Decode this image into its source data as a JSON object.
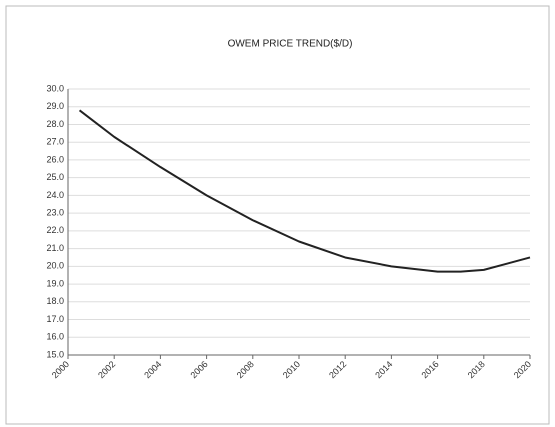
{
  "chart_data": {
    "type": "line",
    "title": "OWEM PRICE TREND($/D)",
    "x": [
      2000.5,
      2002,
      2004,
      2006,
      2008,
      2010,
      2012,
      2014,
      2016,
      2017,
      2018,
      2020
    ],
    "series": [
      {
        "color": "#222222",
        "values": [
          28.8,
          27.3,
          25.6,
          24.0,
          22.6,
          21.4,
          20.5,
          20.0,
          19.7,
          19.7,
          19.8,
          20.5
        ]
      }
    ],
    "xlim": [
      2000,
      2020
    ],
    "xticks": [
      2000,
      2002,
      2004,
      2006,
      2008,
      2010,
      2012,
      2014,
      2016,
      2018,
      2020
    ],
    "ylim": [
      15,
      30
    ],
    "yticks": [
      {
        "value": 15,
        "label": "15.0"
      },
      {
        "value": 16,
        "label": "16.0"
      },
      {
        "value": 17,
        "label": "17.0"
      },
      {
        "value": 18,
        "label": "18.0"
      },
      {
        "value": 19,
        "label": "19.0"
      },
      {
        "value": 20,
        "label": "20.0"
      },
      {
        "value": 21,
        "label": "21.0"
      },
      {
        "value": 22,
        "label": "22.0"
      },
      {
        "value": 23,
        "label": "23.0"
      },
      {
        "value": 24,
        "label": "24.0"
      },
      {
        "value": 25,
        "label": "25.0"
      },
      {
        "value": 26,
        "label": "26.0"
      },
      {
        "value": 27,
        "label": "27.0"
      },
      {
        "value": 28,
        "label": "28.0"
      },
      {
        "value": 29,
        "label": "29.0"
      },
      {
        "value": 30,
        "label": "30.0"
      }
    ],
    "grid": true
  }
}
